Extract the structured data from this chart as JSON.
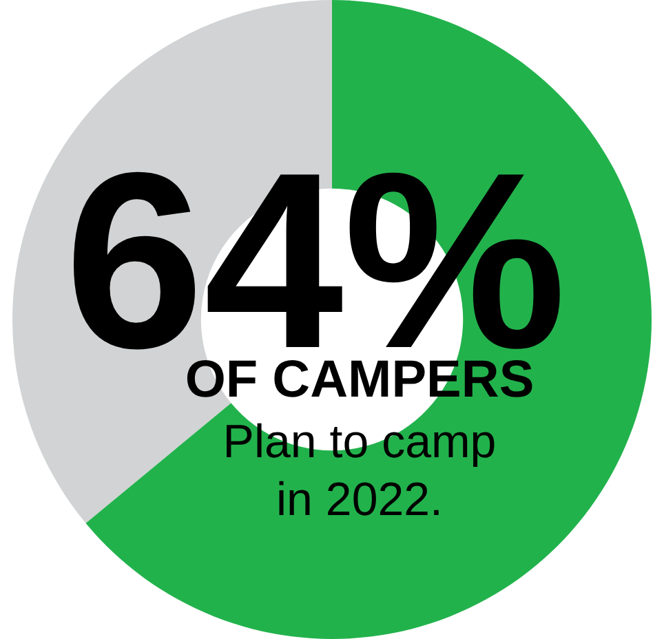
{
  "chart_data": {
    "type": "donut",
    "categories": [
      null,
      null
    ],
    "values": [
      64,
      36
    ],
    "colors": [
      "#22b24c",
      "#d1d3d4"
    ],
    "value_labels": [
      "64%",
      null
    ],
    "annotations": [
      "OF CAMPERS",
      "Plan to camp\nin 2022."
    ],
    "legend": false
  }
}
